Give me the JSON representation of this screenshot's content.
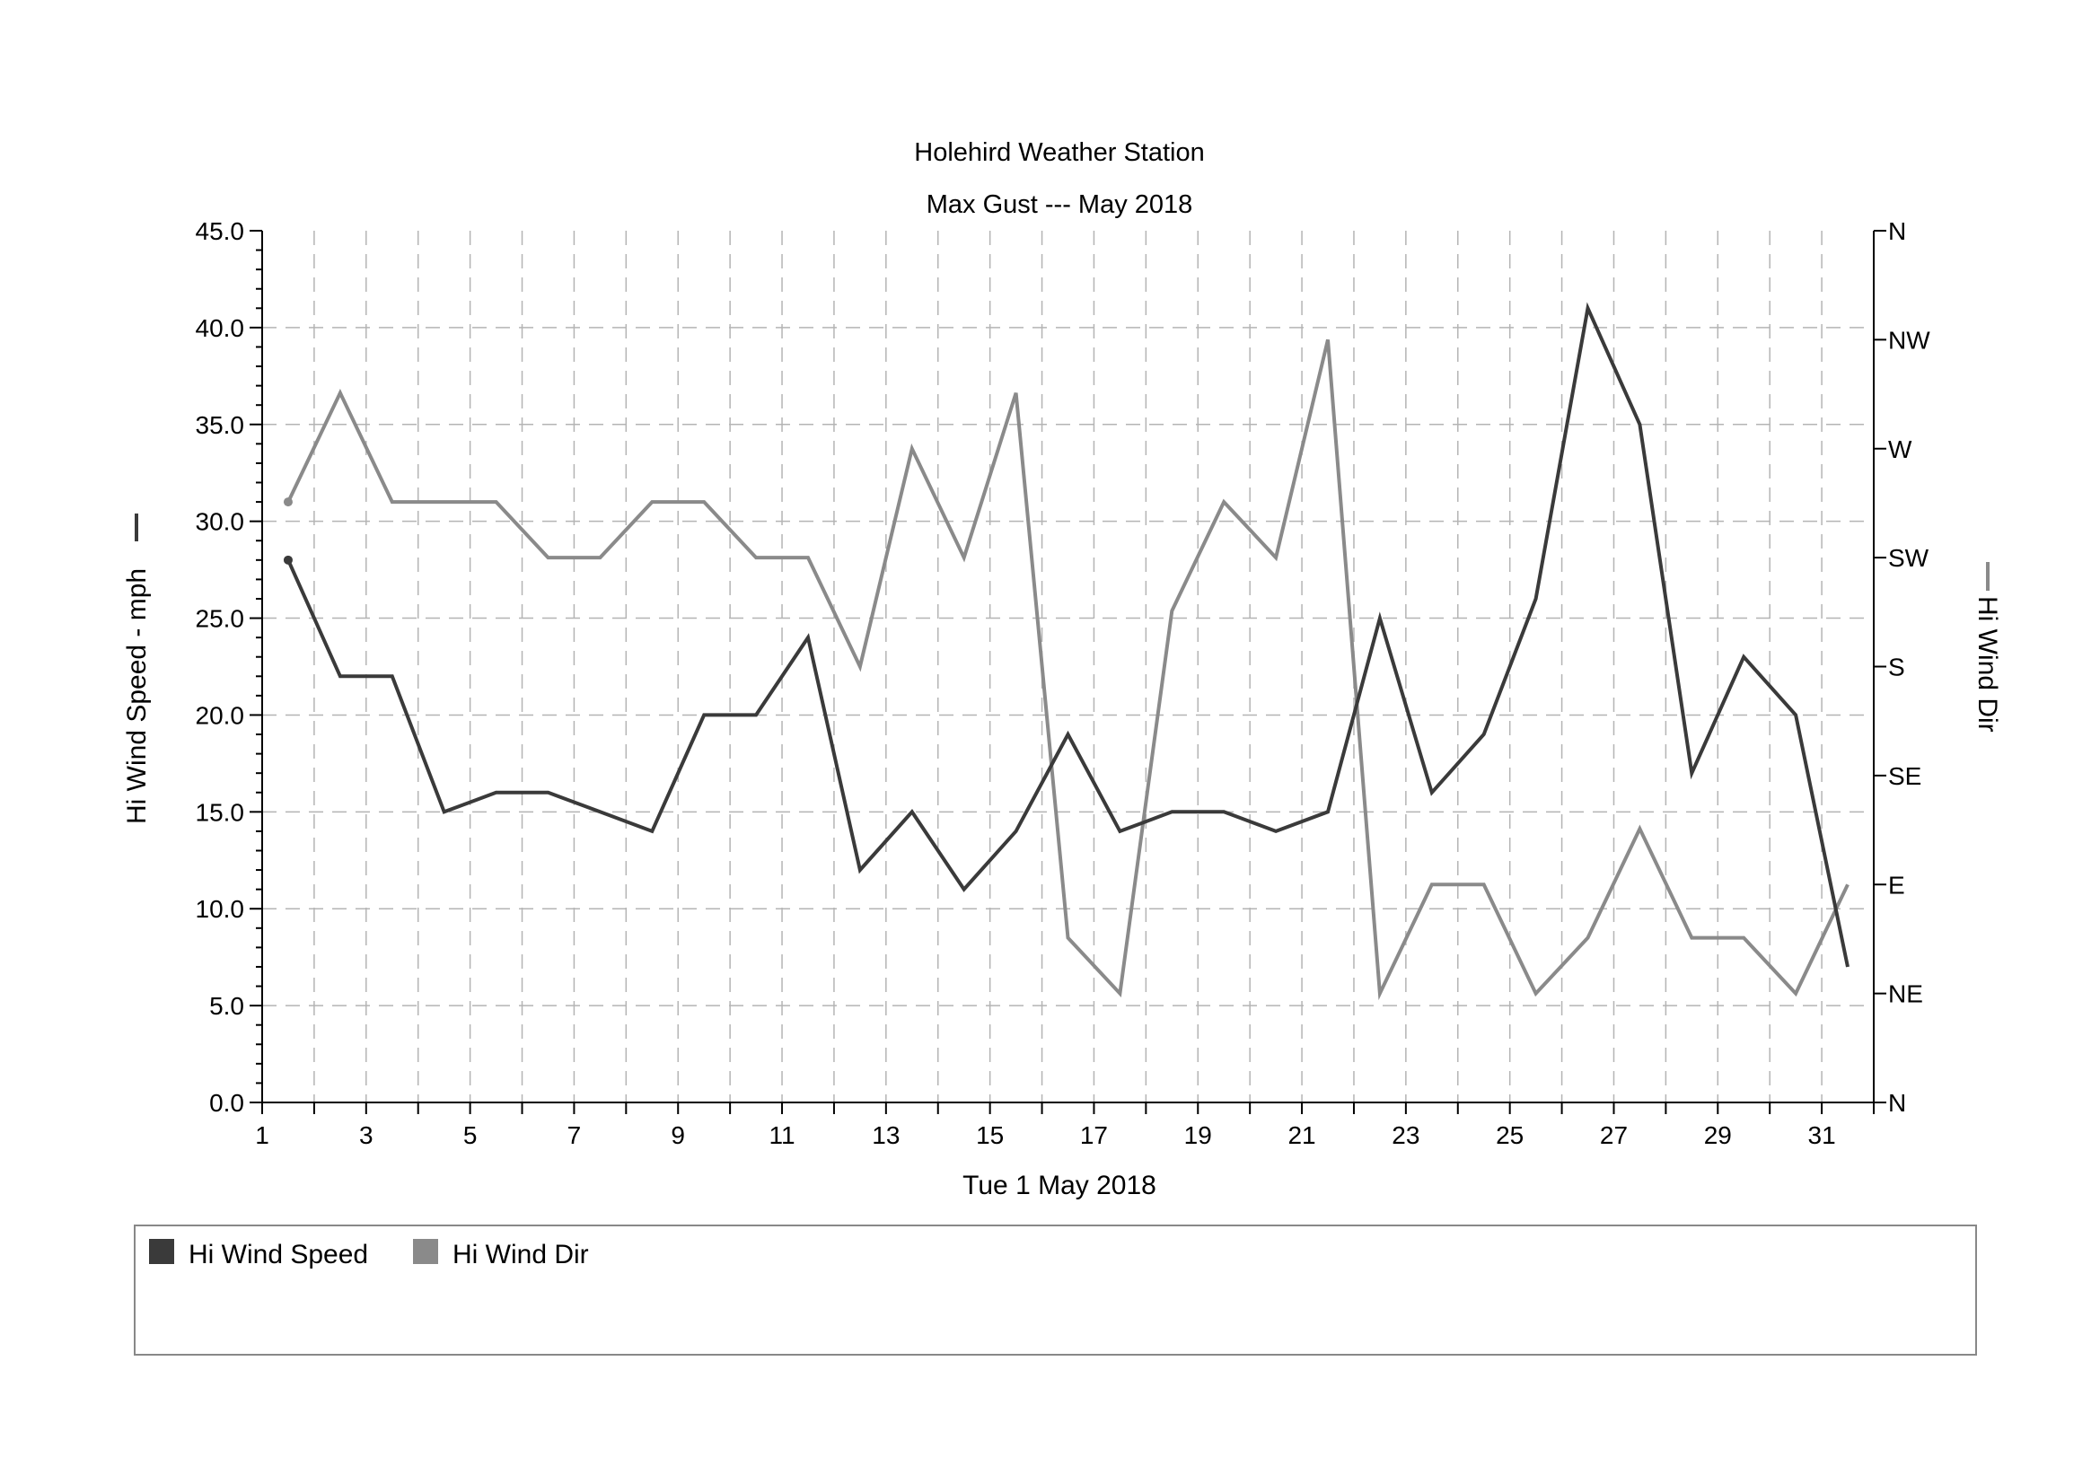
{
  "chart_data": {
    "type": "line",
    "title": "Holehird Weather Station",
    "subtitle": "Max Gust --- May 2018",
    "xlabel": "Tue 1 May 2018",
    "ylabel_left": "Hi Wind Speed - mph",
    "ylabel_right": "Hi Wind Dir",
    "xlim": [
      1,
      32
    ],
    "x_ticks": [
      1,
      3,
      5,
      7,
      9,
      11,
      13,
      15,
      17,
      19,
      21,
      23,
      25,
      27,
      29,
      31
    ],
    "x_tick_labels": [
      "1",
      "3",
      "5",
      "7",
      "9",
      "11",
      "13",
      "15",
      "17",
      "19",
      "21",
      "23",
      "25",
      "27",
      "29",
      "31"
    ],
    "ylim_left": [
      0,
      45
    ],
    "y_left_ticks": [
      0,
      5,
      10,
      15,
      20,
      25,
      30,
      35,
      40,
      45
    ],
    "y_left_tick_labels": [
      "0.0",
      "5.0",
      "10.0",
      "15.0",
      "20.0",
      "25.0",
      "30.0",
      "35.0",
      "40.0",
      "45.0"
    ],
    "ylim_right": [
      0,
      360
    ],
    "y_right_ticks": [
      0,
      45,
      90,
      135,
      180,
      225,
      270,
      315,
      360
    ],
    "y_right_tick_labels": [
      "N",
      "NE",
      "E",
      "SE",
      "S",
      "SW",
      "W",
      "NW",
      "N"
    ],
    "grid": true,
    "legend_position": "bottom",
    "series": [
      {
        "name": "Hi Wind Speed",
        "axis": "left",
        "color": "#3a3a3a",
        "x": [
          1.5,
          2.5,
          3.5,
          4.5,
          5.5,
          6.5,
          7.5,
          8.5,
          9.5,
          10.5,
          11.5,
          12.5,
          13.5,
          14.5,
          15.5,
          16.5,
          17.5,
          18.5,
          19.5,
          20.5,
          21.5,
          22.5,
          23.5,
          24.5,
          25.5,
          26.5,
          27.5,
          28.5,
          29.5,
          30.5,
          31.5
        ],
        "values": [
          28,
          22,
          22,
          15,
          16,
          16,
          15,
          14,
          20,
          20,
          24,
          12,
          15,
          11,
          14,
          19,
          14,
          15,
          15,
          14,
          15,
          25,
          16,
          19,
          26,
          41,
          35,
          17,
          23,
          20,
          7
        ]
      },
      {
        "name": "Hi Wind Dir",
        "axis": "right",
        "color": "#8a8a8a",
        "x": [
          1.5,
          2.5,
          3.5,
          4.5,
          5.5,
          6.5,
          7.5,
          8.5,
          9.5,
          10.5,
          11.5,
          12.5,
          13.5,
          14.5,
          15.5,
          16.5,
          17.5,
          18.5,
          19.5,
          20.5,
          21.5,
          22.5,
          23.5,
          24.5,
          25.5,
          26.5,
          27.5,
          28.5,
          29.5,
          30.5,
          31.5
        ],
        "values": [
          248,
          293,
          248,
          248,
          248,
          225,
          225,
          248,
          248,
          225,
          225,
          180,
          270,
          225,
          293,
          68,
          45,
          203,
          248,
          225,
          315,
          45,
          90,
          90,
          45,
          68,
          113,
          68,
          68,
          45,
          90
        ]
      }
    ]
  }
}
